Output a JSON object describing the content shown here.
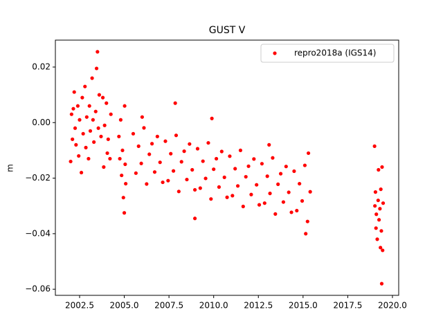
{
  "chart_data": {
    "type": "scatter",
    "title": "GUST V",
    "y_label": "m",
    "x": [
      2002.0,
      2002.05,
      2002.1,
      2002.15,
      2002.2,
      2002.25,
      2002.3,
      2002.4,
      2002.45,
      2002.5,
      2002.6,
      2002.65,
      2002.7,
      2002.8,
      2002.85,
      2002.9,
      2003.0,
      2003.05,
      2003.1,
      2003.2,
      2003.25,
      2003.3,
      2003.4,
      2003.45,
      2003.5,
      2003.55,
      2003.6,
      2003.7,
      2003.8,
      2003.85,
      2003.9,
      2004.0,
      2004.05,
      2004.1,
      2004.2,
      2004.25,
      2004.7,
      2004.75,
      2004.8,
      2004.85,
      2004.9,
      2004.95,
      2005.0,
      2005.02,
      2005.05,
      2005.08,
      2005.5,
      2005.65,
      2005.8,
      2005.95,
      2006.1,
      2006.25,
      2006.4,
      2006.55,
      2006.7,
      2006.85,
      2007.0,
      2007.15,
      2007.3,
      2007.45,
      2007.6,
      2007.75,
      2007.9,
      2008.05,
      2008.2,
      2008.35,
      2008.5,
      2008.65,
      2008.8,
      2008.95,
      2009.1,
      2009.25,
      2009.4,
      2009.55,
      2009.7,
      2009.85,
      2010.0,
      2010.15,
      2010.3,
      2010.45,
      2010.6,
      2010.75,
      2010.9,
      2011.05,
      2011.2,
      2011.35,
      2011.5,
      2011.65,
      2011.8,
      2011.95,
      2012.1,
      2012.25,
      2012.4,
      2012.55,
      2012.7,
      2012.85,
      2013.0,
      2013.15,
      2013.3,
      2013.45,
      2013.6,
      2013.75,
      2013.9,
      2014.05,
      2014.2,
      2014.35,
      2014.5,
      2014.65,
      2014.8,
      2014.95,
      2015.1,
      2015.25,
      2015.4,
      2007.85,
      2015.15,
      2008.95,
      2006.0,
      2009.9,
      2015.3,
      2013.1,
      2019.0,
      2019.02,
      2019.05,
      2019.08,
      2019.1,
      2019.15,
      2019.2,
      2019.22,
      2019.25,
      2019.3,
      2019.33,
      2019.35,
      2019.38,
      2019.4,
      2019.42,
      2019.45,
      2019.48
    ],
    "series": [
      {
        "name": "repro2018a (IGS14)",
        "color": "#ff0000",
        "values": [
          -0.014,
          0.003,
          -0.006,
          0.005,
          0.011,
          -0.002,
          -0.008,
          0.006,
          -0.012,
          0.001,
          -0.018,
          0.009,
          -0.004,
          0.013,
          -0.009,
          0.002,
          -0.013,
          0.006,
          -0.003,
          0.016,
          0.001,
          -0.007,
          0.004,
          0.0195,
          0.0255,
          -0.002,
          0.01,
          -0.005,
          0.009,
          -0.016,
          -0.001,
          0.007,
          -0.011,
          -0.006,
          -0.013,
          0.003,
          -0.005,
          -0.013,
          0.001,
          -0.019,
          -0.01,
          -0.027,
          -0.0325,
          0.006,
          -0.015,
          -0.022,
          -0.004,
          -0.0182,
          -0.0085,
          -0.0147,
          -0.0019,
          -0.0221,
          -0.0114,
          -0.0076,
          -0.0178,
          -0.005,
          -0.0143,
          -0.0215,
          -0.0067,
          -0.0209,
          -0.0112,
          -0.0174,
          -0.0046,
          -0.0248,
          -0.0141,
          -0.0103,
          -0.0205,
          -0.0077,
          -0.017,
          -0.0242,
          -0.0094,
          -0.0236,
          -0.0139,
          -0.0201,
          -0.0073,
          -0.0275,
          -0.0168,
          -0.013,
          -0.0232,
          -0.0104,
          -0.0197,
          -0.0269,
          -0.0121,
          -0.0263,
          -0.0166,
          -0.0228,
          -0.01,
          -0.0302,
          -0.0195,
          -0.0157,
          -0.0259,
          -0.0131,
          -0.0224,
          -0.0296,
          -0.0148,
          -0.029,
          -0.0193,
          -0.0255,
          -0.0127,
          -0.0329,
          -0.0222,
          -0.0184,
          -0.0286,
          -0.0158,
          -0.0251,
          -0.0323,
          -0.0175,
          -0.0317,
          -0.022,
          -0.0282,
          -0.0154,
          -0.0356,
          -0.0249,
          0.007,
          -0.04,
          -0.0345,
          0.002,
          0.0015,
          -0.011,
          -0.008,
          -0.0085,
          -0.03,
          -0.025,
          -0.038,
          -0.033,
          -0.042,
          -0.028,
          -0.017,
          -0.035,
          -0.031,
          -0.045,
          -0.024,
          -0.039,
          -0.058,
          -0.016,
          -0.046,
          -0.029
        ]
      }
    ],
    "xlim": [
      2001.145,
      2020.35
    ],
    "ylim": [
      -0.0622,
      0.0297
    ],
    "xticks": [
      2002.5,
      {
        "value": 2005,
        "label": "2005.0"
      },
      2007.5,
      {
        "value": 2010,
        "label": "2010.0"
      },
      2012.5,
      {
        "value": 2015,
        "label": "2015.0"
      },
      2017.5,
      {
        "value": 2020,
        "label": "2020.0"
      }
    ],
    "yticks": [
      {
        "value": -0.06,
        "label": "−0.06"
      },
      {
        "value": -0.04,
        "label": "−0.04"
      },
      {
        "value": -0.02,
        "label": "−0.02"
      },
      {
        "value": 0,
        "label": "0.00"
      },
      0.02
    ],
    "grid": false,
    "legend": "upper right"
  }
}
